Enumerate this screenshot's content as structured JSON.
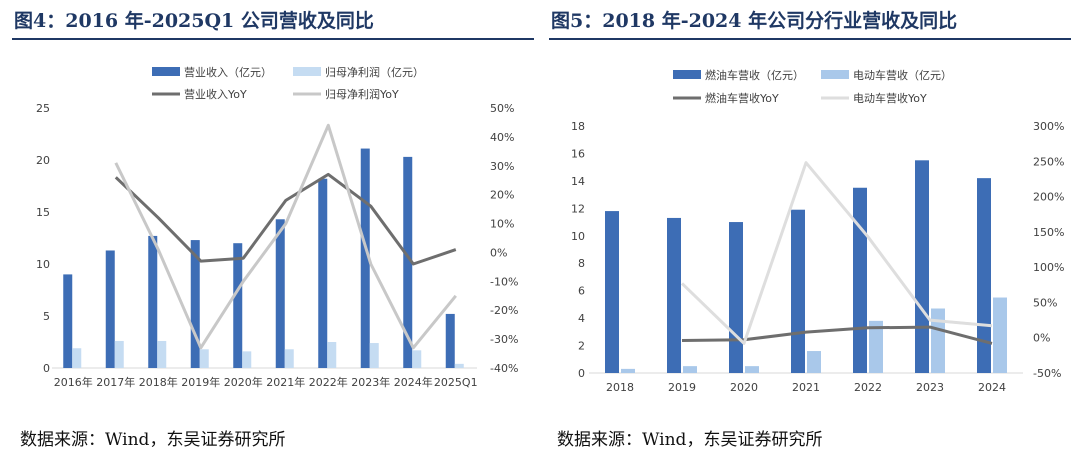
{
  "left": {
    "title": "图4：2016 年-2025Q1 公司营收及同比",
    "source": "数据来源：Wind，东吴证券研究所"
  },
  "right": {
    "title": "图5：2018 年-2024 年公司分行业营收及同比",
    "source": "数据来源：Wind，东吴证券研究所"
  },
  "colors": {
    "dark_blue": "#3d6db5",
    "light_blue": "#c5dcf2",
    "light_blue2": "#a9c8ea",
    "dark_grey": "#6e6e6e",
    "light_grey": "#c8c8c8",
    "light_grey2": "#dedede",
    "title": "#1f3864"
  },
  "chart_data": [
    {
      "type": "bar",
      "categories": [
        "2016年",
        "2017年",
        "2018年",
        "2019年",
        "2020年",
        "2021年",
        "2022年",
        "2023年",
        "2024年",
        "2025Q1"
      ],
      "series": [
        {
          "name": "营业收入（亿元）",
          "kind": "bar",
          "axis": "left",
          "values": [
            9.0,
            11.3,
            12.7,
            12.3,
            12.0,
            14.3,
            18.2,
            21.1,
            20.3,
            5.2
          ]
        },
        {
          "name": "归母净利润（亿元）",
          "kind": "bar",
          "axis": "left",
          "values": [
            1.9,
            2.6,
            2.6,
            1.8,
            1.6,
            1.8,
            2.5,
            2.4,
            1.7,
            0.4
          ]
        },
        {
          "name": "营业收入YoY",
          "kind": "line",
          "axis": "right",
          "values": [
            null,
            26,
            12,
            -3,
            -2,
            18,
            27,
            16,
            -4,
            1
          ]
        },
        {
          "name": "归母净利润YoY",
          "kind": "line",
          "axis": "right",
          "values": [
            null,
            31,
            1,
            -33,
            -10,
            10,
            44,
            -4,
            -33,
            -15
          ]
        }
      ],
      "y_left": {
        "min": 0,
        "max": 25,
        "ticks": [
          "0",
          "5",
          "10",
          "15",
          "20",
          "25"
        ]
      },
      "y_right": {
        "min": -40,
        "max": 50,
        "ticks": [
          "-40%",
          "-30%",
          "-20%",
          "-10%",
          "0%",
          "10%",
          "20%",
          "30%",
          "40%",
          "50%"
        ]
      },
      "legend_position": "top"
    },
    {
      "type": "bar",
      "categories": [
        "2018",
        "2019",
        "2020",
        "2021",
        "2022",
        "2023",
        "2024"
      ],
      "series": [
        {
          "name": "燃油车营收（亿元）",
          "kind": "bar",
          "axis": "left",
          "values": [
            11.8,
            11.3,
            11.0,
            11.9,
            13.5,
            15.5,
            14.2
          ]
        },
        {
          "name": "电动车营收（亿元）",
          "kind": "bar",
          "axis": "left",
          "values": [
            0.3,
            0.5,
            0.5,
            1.6,
            3.8,
            4.7,
            5.5
          ]
        },
        {
          "name": "燃油车营收YoY",
          "kind": "line",
          "axis": "right",
          "values": [
            null,
            -4,
            -3,
            8,
            14,
            15,
            -8
          ]
        },
        {
          "name": "电动车营收YoY",
          "kind": "line",
          "axis": "right",
          "values": [
            null,
            77,
            -8,
            248,
            143,
            25,
            17
          ]
        }
      ],
      "y_left": {
        "min": 0,
        "max": 18,
        "ticks": [
          "0",
          "2",
          "4",
          "6",
          "8",
          "10",
          "12",
          "14",
          "16",
          "18"
        ]
      },
      "y_right": {
        "min": -50,
        "max": 300,
        "ticks": [
          "-50%",
          "0%",
          "50%",
          "100%",
          "150%",
          "200%",
          "250%",
          "300%"
        ]
      },
      "legend_position": "top"
    }
  ]
}
